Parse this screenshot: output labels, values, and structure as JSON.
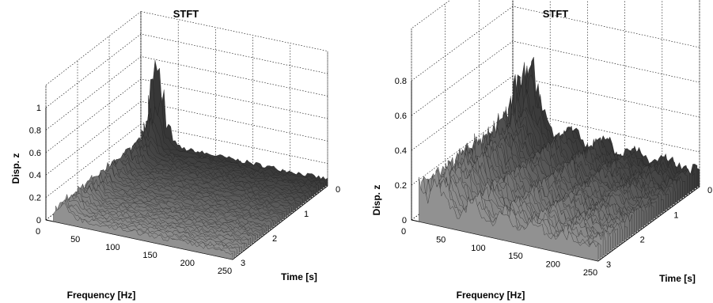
{
  "chart_data": [
    {
      "type": "surface",
      "title": "STFT",
      "xlabel": "Frequency [Hz]",
      "ylabel": "Time [s]",
      "zlabel": "Disp. z",
      "xticks": [
        0,
        50,
        100,
        150,
        200,
        250
      ],
      "yticks": [
        0,
        1,
        2,
        3
      ],
      "zticks": [
        0,
        0.2,
        0.4,
        0.6,
        0.8,
        1
      ],
      "xlim": [
        0,
        250
      ],
      "ylim": [
        0,
        3
      ],
      "zlim": [
        0,
        1
      ],
      "grid": true,
      "colormap": "gray",
      "description_values": {
        "peak_frequency_band_hz": [
          10,
          35
        ],
        "peak_amplitude": 0.98,
        "floor_amplitude": 0.05
      }
    },
    {
      "type": "surface",
      "title": "STFT",
      "xlabel": "Frequency [Hz]",
      "ylabel": "Time [s]",
      "zlabel": "Disp. z",
      "xticks": [
        0,
        50,
        100,
        150,
        200,
        250
      ],
      "yticks": [
        0,
        1,
        2,
        3
      ],
      "zticks": [
        0,
        0.2,
        0.4,
        0.6,
        0.8
      ],
      "xlim": [
        0,
        250
      ],
      "ylim": [
        0,
        3
      ],
      "zlim": [
        0,
        0.8
      ],
      "grid": true,
      "colormap": "gray",
      "description_values": {
        "peak_frequency_band_hz": [
          10,
          35
        ],
        "peak_amplitude": 0.78,
        "ridge_amplitude": 0.3
      }
    }
  ]
}
